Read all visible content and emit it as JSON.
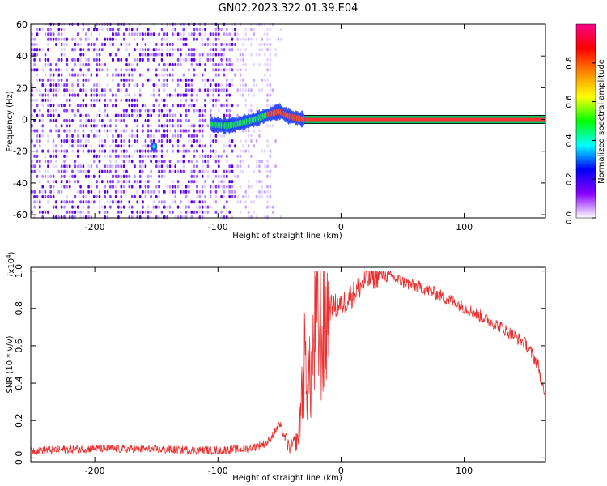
{
  "figure": {
    "title": "GN02.2023.322.01.39.E04"
  },
  "chart_data": [
    {
      "type": "heatmap",
      "title": "",
      "xlabel": "Height of straight line (km)",
      "ylabel": "Frequency (Hz)",
      "xlim": [
        -252,
        166
      ],
      "ylim": [
        -62,
        60
      ],
      "xticks": [
        -200,
        -100,
        0,
        100
      ],
      "yticks": [
        -60,
        -40,
        -20,
        0,
        20,
        40,
        60
      ],
      "grid": false,
      "noise_region_x": [
        -252,
        -48
      ],
      "signal_track": [
        {
          "x": -105,
          "y": -3
        },
        {
          "x": -92,
          "y": -4
        },
        {
          "x": -80,
          "y": -2
        },
        {
          "x": -70,
          "y": 0
        },
        {
          "x": -60,
          "y": 3
        },
        {
          "x": -50,
          "y": 5
        },
        {
          "x": -42,
          "y": 2
        },
        {
          "x": -30,
          "y": 0
        },
        {
          "x": 0,
          "y": 0
        },
        {
          "x": 166,
          "y": 0
        }
      ],
      "isolated_spot": {
        "x": -152,
        "y": -17
      },
      "colorbar": {
        "label": "Normalized spectral amplitude",
        "range": [
          0.0,
          1.0
        ],
        "ticks": [
          "0.0",
          "0.2",
          "0.4",
          "0.6",
          "0.8"
        ],
        "colors": [
          "#ffffff",
          "#8800ff",
          "#0000ff",
          "#00ffff",
          "#00ff00",
          "#ffff00",
          "#ff8800",
          "#ff0000",
          "#ff0088"
        ]
      }
    },
    {
      "type": "line",
      "title": "",
      "xlabel": "Height of straight line (km)",
      "ylabel": "SNR (10 * v/v)",
      "y_multiplier": "(x10",
      "y_multiplier_exp": "4",
      "y_multiplier_close": ")",
      "xlim": [
        -252,
        166
      ],
      "ylim": [
        -0.02,
        1.02
      ],
      "xticks": [
        -200,
        -100,
        0,
        100
      ],
      "yticks": [
        "0.0",
        "0.2",
        "0.4",
        "0.6",
        "0.8",
        "1.0"
      ],
      "grid": false,
      "series": [
        {
          "color": "#e83030",
          "envelope": [
            {
              "x": -252,
              "y": 0.04
            },
            {
              "x": -200,
              "y": 0.05
            },
            {
              "x": -150,
              "y": 0.045
            },
            {
              "x": -100,
              "y": 0.04
            },
            {
              "x": -75,
              "y": 0.05
            },
            {
              "x": -60,
              "y": 0.08
            },
            {
              "x": -50,
              "y": 0.18
            },
            {
              "x": -42,
              "y": 0.05
            },
            {
              "x": -35,
              "y": 0.1
            },
            {
              "x": -30,
              "y": 0.5
            },
            {
              "x": -25,
              "y": 0.4
            },
            {
              "x": -20,
              "y": 0.75
            },
            {
              "x": -15,
              "y": 0.65
            },
            {
              "x": -10,
              "y": 0.8
            },
            {
              "x": 0,
              "y": 0.82
            },
            {
              "x": 10,
              "y": 0.88
            },
            {
              "x": 20,
              "y": 0.95
            },
            {
              "x": 30,
              "y": 0.98
            },
            {
              "x": 40,
              "y": 0.97
            },
            {
              "x": 55,
              "y": 0.93
            },
            {
              "x": 70,
              "y": 0.9
            },
            {
              "x": 90,
              "y": 0.84
            },
            {
              "x": 110,
              "y": 0.77
            },
            {
              "x": 130,
              "y": 0.7
            },
            {
              "x": 150,
              "y": 0.61
            },
            {
              "x": 160,
              "y": 0.5
            },
            {
              "x": 166,
              "y": 0.3
            }
          ]
        }
      ]
    }
  ]
}
